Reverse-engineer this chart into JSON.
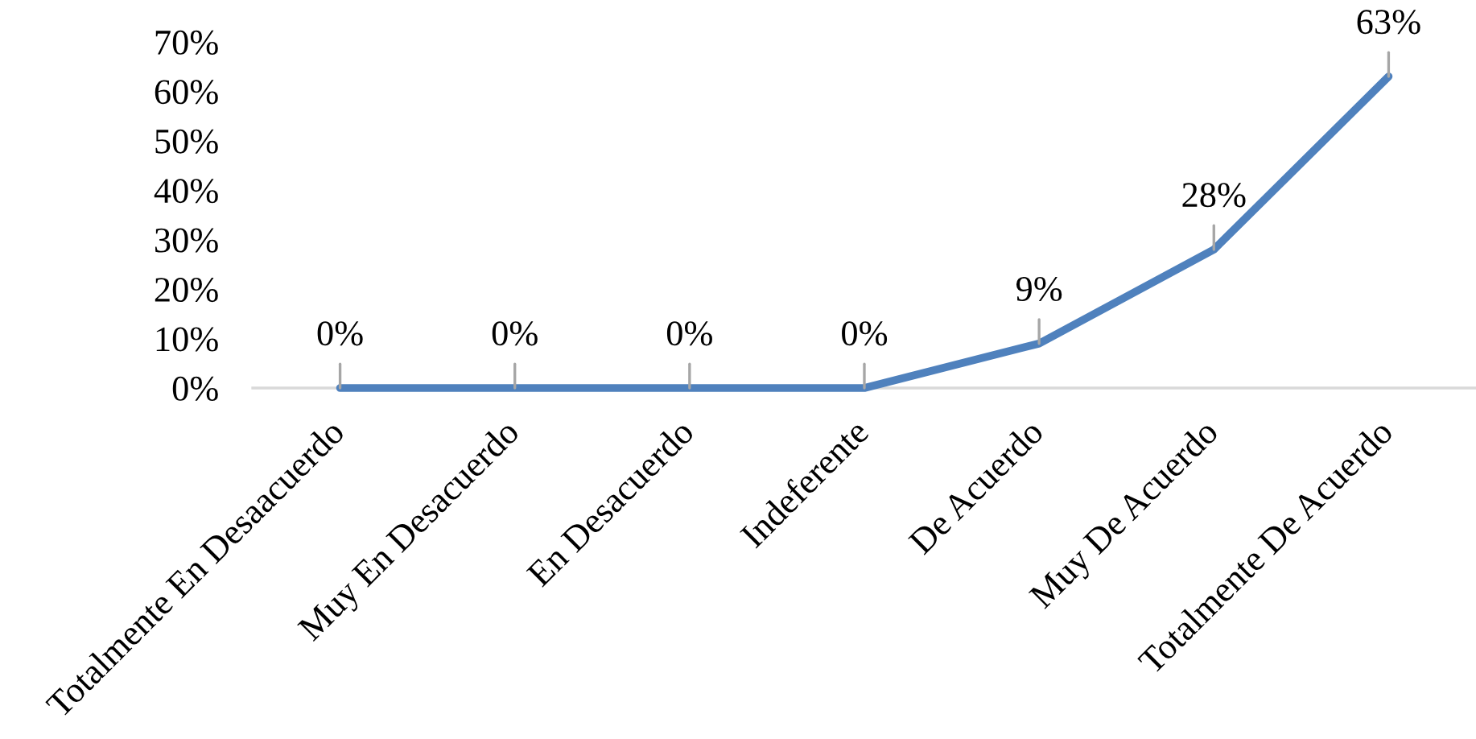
{
  "chart_data": {
    "type": "line",
    "categories": [
      "Totalmente En Desaacuerdo",
      "Muy En Desacuerdo",
      "En Desacuerdo",
      "Indeferente",
      "De Acuerdo",
      "Muy De Acuerdo",
      "Totalmente De Acuerdo"
    ],
    "series": [
      {
        "color": "#4f81bd",
        "values": [
          0,
          0,
          0,
          0,
          9,
          28,
          63
        ],
        "value_labels": [
          "0%",
          "0%",
          "0%",
          "0%",
          "9%",
          "28%",
          "63%"
        ]
      }
    ],
    "ylim": [
      0,
      70
    ],
    "yticks": [
      {
        "value": 0,
        "label": "0%"
      },
      {
        "value": 10,
        "label": "10%"
      },
      {
        "value": 20,
        "label": "20%"
      },
      {
        "value": 30,
        "label": "30%"
      },
      {
        "value": 40,
        "label": "40%"
      },
      {
        "value": 50,
        "label": "50%"
      },
      {
        "value": 60,
        "label": "60%"
      },
      {
        "value": 70,
        "label": "70%"
      }
    ],
    "grid": false,
    "marker": "none",
    "line_style": "solid"
  }
}
